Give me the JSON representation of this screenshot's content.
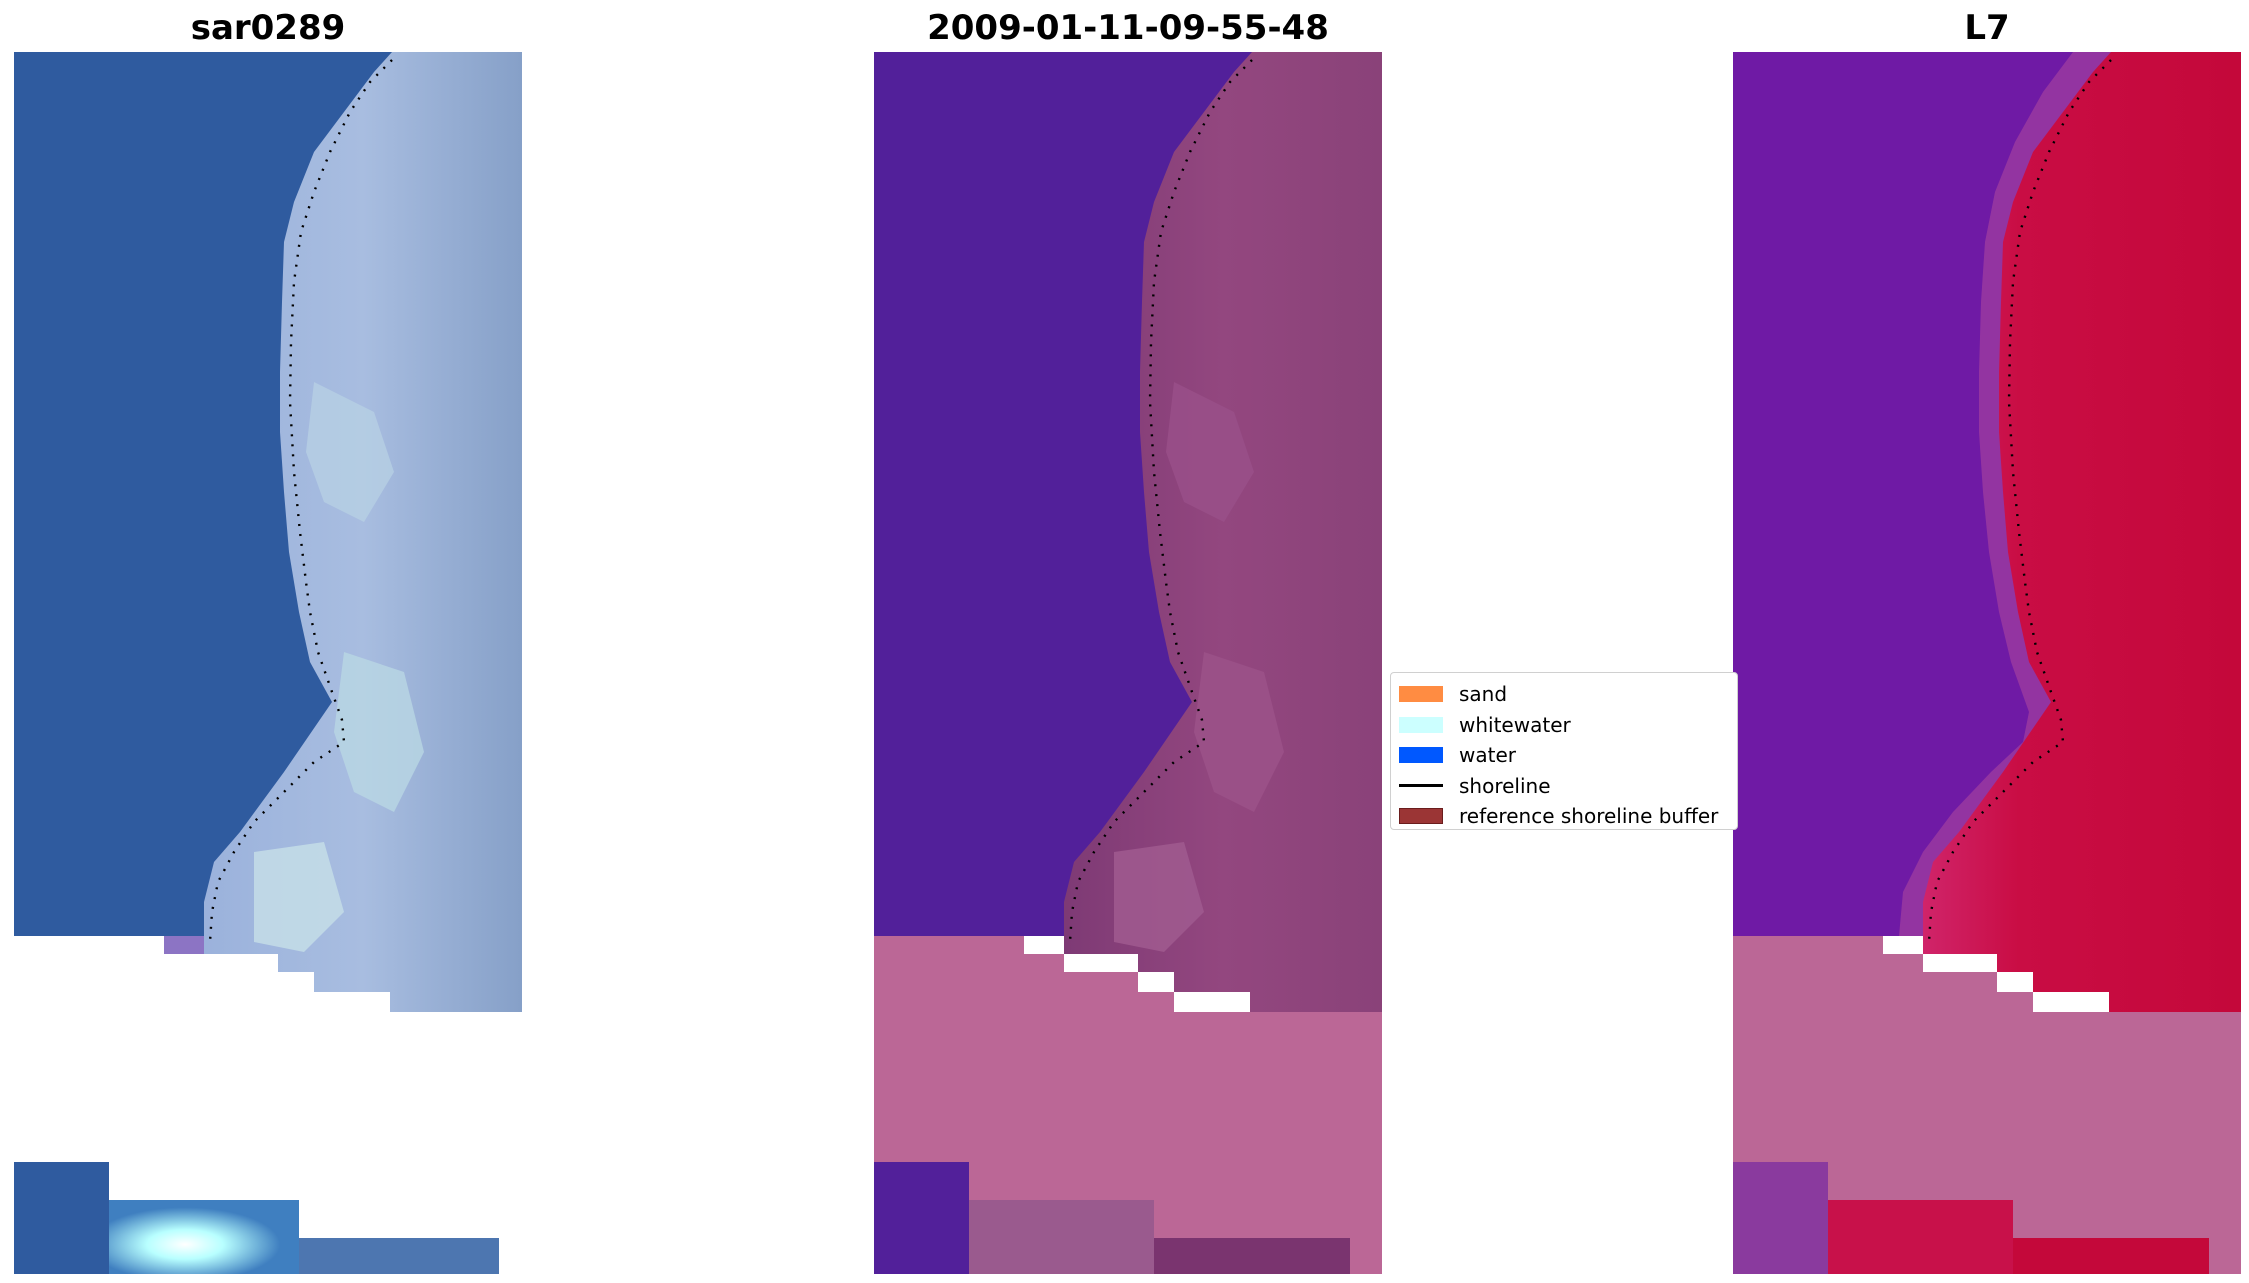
{
  "panels": {
    "left": {
      "title": "sar0289"
    },
    "middle": {
      "title": "2009-01-11-09-55-48"
    },
    "right": {
      "title": "L7"
    }
  },
  "legend": {
    "items": [
      {
        "label": "sand",
        "color": "#ff8c42",
        "kind": "patch"
      },
      {
        "label": "whitewater",
        "color": "#ccffff",
        "kind": "patch"
      },
      {
        "label": "water",
        "color": "#0058ff",
        "kind": "patch"
      },
      {
        "label": "shoreline",
        "color": "#000000",
        "kind": "line"
      },
      {
        "label": "reference shoreline buffer",
        "color": "#9b3535",
        "kind": "patch"
      }
    ]
  },
  "colors": {
    "rgb_water": "#2f5b9f",
    "rgb_land": "#8fa9d5",
    "class_water": "#52209a",
    "class_land": "#874077",
    "mask_pink": "#bb6796",
    "index_water": "#6f1aa5",
    "index_land": "#c40a3d"
  }
}
